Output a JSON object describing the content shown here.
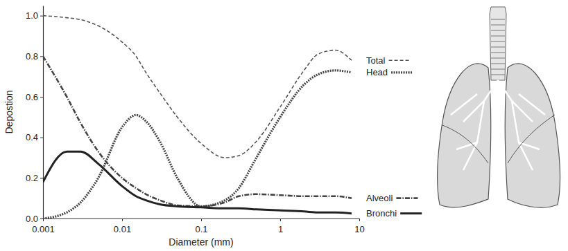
{
  "chart_data": {
    "type": "line",
    "x_label": "Diameter (mm)",
    "y_label": "Depostion",
    "x": [
      0.001,
      0.002,
      0.003,
      0.005,
      0.01,
      0.015,
      0.02,
      0.03,
      0.05,
      0.1,
      0.2,
      0.3,
      0.5,
      1,
      2,
      3,
      5,
      8
    ],
    "series": [
      {
        "name": "Total",
        "color": "#555555",
        "line_style": "dashed",
        "values": [
          1.0,
          0.99,
          0.98,
          0.95,
          0.87,
          0.8,
          0.72,
          0.62,
          0.5,
          0.37,
          0.3,
          0.31,
          0.38,
          0.55,
          0.73,
          0.81,
          0.83,
          0.78
        ]
      },
      {
        "name": "Head",
        "color": "#444444",
        "line_style": "dotted",
        "values": [
          0.0,
          0.03,
          0.08,
          0.2,
          0.45,
          0.51,
          0.48,
          0.38,
          0.2,
          0.06,
          0.09,
          0.15,
          0.3,
          0.5,
          0.66,
          0.71,
          0.73,
          0.72
        ]
      },
      {
        "name": "Alveoli",
        "color": "#444444",
        "line_style": "dashdot",
        "values": [
          0.8,
          0.6,
          0.47,
          0.33,
          0.2,
          0.15,
          0.12,
          0.09,
          0.065,
          0.06,
          0.08,
          0.11,
          0.12,
          0.115,
          0.11,
          0.11,
          0.11,
          0.1
        ]
      },
      {
        "name": "Bronchi",
        "color": "#222222",
        "line_style": "solid",
        "values": [
          0.18,
          0.33,
          0.33,
          0.27,
          0.16,
          0.11,
          0.09,
          0.07,
          0.06,
          0.055,
          0.05,
          0.05,
          0.045,
          0.04,
          0.035,
          0.03,
          0.03,
          0.025
        ]
      }
    ],
    "xlim": [
      0.001,
      10
    ],
    "ylim": [
      0,
      1.05
    ],
    "xticks": [
      0.001,
      0.01,
      0.1,
      1,
      10
    ],
    "yticks": [
      {
        "value": 0,
        "label": "0.0"
      },
      {
        "value": 0.2,
        "label": "0.2"
      },
      {
        "value": 0.4,
        "label": "0.4"
      },
      {
        "value": 0.6,
        "label": "0.6"
      },
      {
        "value": 0.8,
        "label": "0.8"
      },
      {
        "value": 1.0,
        "label": "1.0"
      }
    ],
    "log": "x",
    "grid": false,
    "legend": "right"
  }
}
